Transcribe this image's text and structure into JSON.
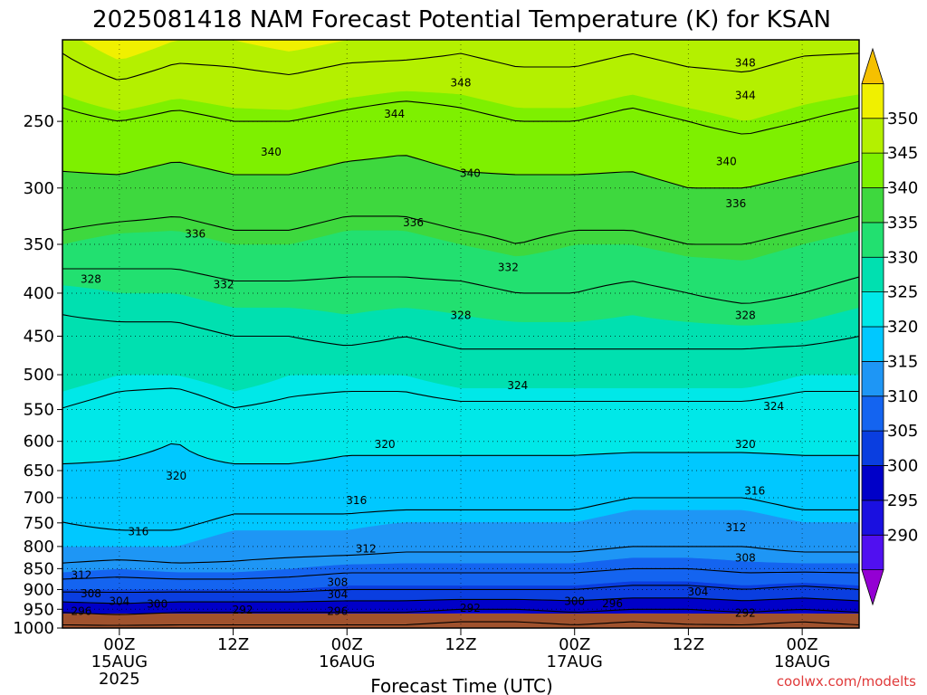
{
  "chart_data": {
    "type": "heatmap",
    "title": "2025081418 NAM Forecast Potential Temperature (K) for KSAN",
    "xlabel": "Forecast Time (UTC)",
    "ylabel": "",
    "y_scale": "log",
    "ylim": [
      1000,
      200
    ],
    "y_ticks": [
      250,
      300,
      350,
      400,
      450,
      500,
      550,
      600,
      650,
      700,
      750,
      800,
      850,
      900,
      950,
      1000
    ],
    "x_start": "2025-08-14 18Z",
    "x_end": "2025-08-18 06Z",
    "x_ticks": [
      {
        "hour": 6,
        "l1": "00Z",
        "l2": "15AUG",
        "l3": "2025"
      },
      {
        "hour": 18,
        "l1": "12Z",
        "l2": "",
        "l3": ""
      },
      {
        "hour": 30,
        "l1": "00Z",
        "l2": "16AUG",
        "l3": ""
      },
      {
        "hour": 42,
        "l1": "12Z",
        "l2": "",
        "l3": ""
      },
      {
        "hour": 54,
        "l1": "00Z",
        "l2": "17AUG",
        "l3": ""
      },
      {
        "hour": 66,
        "l1": "12Z",
        "l2": "",
        "l3": ""
      },
      {
        "hour": 78,
        "l1": "00Z",
        "l2": "18AUG",
        "l3": ""
      }
    ],
    "colorbar": {
      "levels": [
        285,
        290,
        295,
        300,
        305,
        310,
        315,
        320,
        325,
        330,
        335,
        340,
        345,
        350,
        355
      ],
      "labels": [
        290,
        295,
        300,
        305,
        310,
        315,
        320,
        325,
        330,
        335,
        340,
        345,
        350
      ],
      "colors": [
        "#9400d3",
        "#5010f0",
        "#1a10e0",
        "#0000c8",
        "#0a3ee0",
        "#1464f0",
        "#1e96f5",
        "#00c8ff",
        "#00e8e8",
        "#00e0b0",
        "#22e070",
        "#3ed83e",
        "#7ef000",
        "#b4f000",
        "#f0f000",
        "#f5c000"
      ]
    },
    "isotherm_interval": 4,
    "profiles": [
      {
        "hour": 0,
        "levels": [
          [
            1000,
            291
          ],
          [
            950,
            297
          ],
          [
            900,
            305
          ],
          [
            850,
            311
          ],
          [
            800,
            315
          ],
          [
            700,
            317
          ],
          [
            600,
            322
          ],
          [
            500,
            326
          ],
          [
            450,
            327
          ],
          [
            400,
            329
          ],
          [
            350,
            335
          ],
          [
            300,
            339
          ],
          [
            250,
            343
          ],
          [
            200,
            349
          ]
        ]
      },
      {
        "hour": 6,
        "levels": [
          [
            1000,
            291
          ],
          [
            950,
            298
          ],
          [
            900,
            305
          ],
          [
            850,
            310
          ],
          [
            800,
            315
          ],
          [
            700,
            318
          ],
          [
            600,
            321
          ],
          [
            500,
            325
          ],
          [
            450,
            327
          ],
          [
            400,
            330
          ],
          [
            350,
            334
          ],
          [
            300,
            339
          ],
          [
            250,
            344
          ],
          [
            200,
            352
          ]
        ]
      },
      {
        "hour": 12,
        "levels": [
          [
            1000,
            291
          ],
          [
            950,
            297
          ],
          [
            900,
            305
          ],
          [
            850,
            311
          ],
          [
            800,
            315
          ],
          [
            700,
            318
          ],
          [
            600,
            320
          ],
          [
            500,
            325
          ],
          [
            450,
            327
          ],
          [
            400,
            330
          ],
          [
            350,
            334
          ],
          [
            300,
            338
          ],
          [
            250,
            343
          ],
          [
            200,
            350
          ]
        ]
      },
      {
        "hour": 18,
        "levels": [
          [
            1000,
            291
          ],
          [
            950,
            297
          ],
          [
            900,
            305
          ],
          [
            850,
            311
          ],
          [
            800,
            314
          ],
          [
            700,
            317
          ],
          [
            600,
            322
          ],
          [
            500,
            326
          ],
          [
            450,
            328
          ],
          [
            400,
            331
          ],
          [
            350,
            335
          ],
          [
            300,
            339
          ],
          [
            250,
            344
          ],
          [
            200,
            350
          ]
        ]
      },
      {
        "hour": 24,
        "levels": [
          [
            1000,
            291
          ],
          [
            950,
            297
          ],
          [
            900,
            305
          ],
          [
            850,
            310
          ],
          [
            800,
            314
          ],
          [
            700,
            317
          ],
          [
            600,
            322
          ],
          [
            500,
            325
          ],
          [
            450,
            328
          ],
          [
            400,
            331
          ],
          [
            350,
            335
          ],
          [
            300,
            339
          ],
          [
            250,
            344
          ],
          [
            200,
            351
          ]
        ]
      },
      {
        "hour": 30,
        "levels": [
          [
            1000,
            291
          ],
          [
            950,
            297
          ],
          [
            900,
            304
          ],
          [
            850,
            309
          ],
          [
            800,
            314
          ],
          [
            700,
            317
          ],
          [
            600,
            321
          ],
          [
            500,
            325
          ],
          [
            450,
            329
          ],
          [
            400,
            331
          ],
          [
            350,
            334
          ],
          [
            300,
            338
          ],
          [
            250,
            343
          ],
          [
            200,
            350
          ]
        ]
      },
      {
        "hour": 36,
        "levels": [
          [
            1000,
            291
          ],
          [
            950,
            297
          ],
          [
            900,
            304
          ],
          [
            850,
            309
          ],
          [
            800,
            313
          ],
          [
            700,
            317
          ],
          [
            600,
            321
          ],
          [
            500,
            325
          ],
          [
            450,
            328
          ],
          [
            400,
            331
          ],
          [
            350,
            334
          ],
          [
            300,
            338
          ],
          [
            250,
            342
          ],
          [
            200,
            350
          ]
        ]
      },
      {
        "hour": 42,
        "levels": [
          [
            1000,
            290
          ],
          [
            950,
            296
          ],
          [
            900,
            304
          ],
          [
            850,
            309
          ],
          [
            800,
            313
          ],
          [
            700,
            317
          ],
          [
            600,
            321
          ],
          [
            500,
            326
          ],
          [
            450,
            329
          ],
          [
            400,
            331
          ],
          [
            350,
            335
          ],
          [
            300,
            339
          ],
          [
            250,
            343
          ],
          [
            200,
            349
          ]
        ]
      },
      {
        "hour": 48,
        "levels": [
          [
            1000,
            290
          ],
          [
            950,
            296
          ],
          [
            900,
            304
          ],
          [
            850,
            309
          ],
          [
            800,
            313
          ],
          [
            700,
            317
          ],
          [
            600,
            321
          ],
          [
            500,
            326
          ],
          [
            450,
            329
          ],
          [
            400,
            332
          ],
          [
            350,
            336
          ],
          [
            300,
            339
          ],
          [
            250,
            344
          ],
          [
            200,
            350
          ]
        ]
      },
      {
        "hour": 54,
        "levels": [
          [
            1000,
            291
          ],
          [
            950,
            297
          ],
          [
            900,
            304
          ],
          [
            850,
            309
          ],
          [
            800,
            313
          ],
          [
            700,
            317
          ],
          [
            600,
            321
          ],
          [
            500,
            326
          ],
          [
            450,
            329
          ],
          [
            400,
            332
          ],
          [
            350,
            335
          ],
          [
            300,
            339
          ],
          [
            250,
            344
          ],
          [
            200,
            350
          ]
        ]
      },
      {
        "hour": 60,
        "levels": [
          [
            1000,
            290
          ],
          [
            950,
            296
          ],
          [
            900,
            303
          ],
          [
            850,
            308
          ],
          [
            800,
            312
          ],
          [
            700,
            316
          ],
          [
            600,
            321
          ],
          [
            500,
            326
          ],
          [
            450,
            329
          ],
          [
            400,
            331
          ],
          [
            350,
            335
          ],
          [
            300,
            339
          ],
          [
            250,
            343
          ],
          [
            200,
            349
          ]
        ]
      },
      {
        "hour": 66,
        "levels": [
          [
            1000,
            291
          ],
          [
            950,
            296
          ],
          [
            900,
            303
          ],
          [
            850,
            308
          ],
          [
            800,
            312
          ],
          [
            700,
            316
          ],
          [
            600,
            321
          ],
          [
            500,
            326
          ],
          [
            450,
            329
          ],
          [
            400,
            332
          ],
          [
            350,
            336
          ],
          [
            300,
            340
          ],
          [
            250,
            344
          ],
          [
            200,
            350
          ]
        ]
      },
      {
        "hour": 72,
        "levels": [
          [
            1000,
            291
          ],
          [
            950,
            297
          ],
          [
            900,
            304
          ],
          [
            850,
            309
          ],
          [
            800,
            312
          ],
          [
            700,
            316
          ],
          [
            600,
            321
          ],
          [
            500,
            326
          ],
          [
            450,
            329
          ],
          [
            400,
            333
          ],
          [
            350,
            336
          ],
          [
            300,
            340
          ],
          [
            250,
            345
          ],
          [
            200,
            350
          ]
        ]
      },
      {
        "hour": 78,
        "levels": [
          [
            1000,
            290
          ],
          [
            950,
            296
          ],
          [
            900,
            303
          ],
          [
            850,
            309
          ],
          [
            800,
            313
          ],
          [
            700,
            317
          ],
          [
            600,
            321
          ],
          [
            500,
            325
          ],
          [
            450,
            329
          ],
          [
            400,
            332
          ],
          [
            350,
            335
          ],
          [
            300,
            339
          ],
          [
            250,
            344
          ],
          [
            200,
            349
          ]
        ]
      },
      {
        "hour": 84,
        "levels": [
          [
            1000,
            291
          ],
          [
            950,
            297
          ],
          [
            900,
            304
          ],
          [
            850,
            309
          ],
          [
            800,
            313
          ],
          [
            700,
            317
          ],
          [
            600,
            321
          ],
          [
            500,
            325
          ],
          [
            450,
            328
          ],
          [
            400,
            331
          ],
          [
            350,
            334
          ],
          [
            300,
            338
          ],
          [
            250,
            343
          ],
          [
            200,
            349
          ]
        ]
      }
    ],
    "contour_labels": [
      {
        "value": 348,
        "hour": 42,
        "p": 225
      },
      {
        "value": 348,
        "hour": 72,
        "p": 213
      },
      {
        "value": 344,
        "hour": 35,
        "p": 245
      },
      {
        "value": 344,
        "hour": 72,
        "p": 233
      },
      {
        "value": 340,
        "hour": 22,
        "p": 272
      },
      {
        "value": 340,
        "hour": 43,
        "p": 288
      },
      {
        "value": 340,
        "hour": 70,
        "p": 279
      },
      {
        "value": 336,
        "hour": 14,
        "p": 340
      },
      {
        "value": 336,
        "hour": 37,
        "p": 330
      },
      {
        "value": 336,
        "hour": 71,
        "p": 313
      },
      {
        "value": 332,
        "hour": 17,
        "p": 391
      },
      {
        "value": 332,
        "hour": 47,
        "p": 373
      },
      {
        "value": 328,
        "hour": 3,
        "p": 385
      },
      {
        "value": 328,
        "hour": 42,
        "p": 425
      },
      {
        "value": 328,
        "hour": 72,
        "p": 425
      },
      {
        "value": 324,
        "hour": 48,
        "p": 515
      },
      {
        "value": 324,
        "hour": 75,
        "p": 545
      },
      {
        "value": 320,
        "hour": 12,
        "p": 660
      },
      {
        "value": 320,
        "hour": 34,
        "p": 605
      },
      {
        "value": 320,
        "hour": 72,
        "p": 605
      },
      {
        "value": 316,
        "hour": 8,
        "p": 768
      },
      {
        "value": 316,
        "hour": 31,
        "p": 705
      },
      {
        "value": 316,
        "hour": 73,
        "p": 687
      },
      {
        "value": 312,
        "hour": 32,
        "p": 805
      },
      {
        "value": 312,
        "hour": 71,
        "p": 760
      },
      {
        "value": 312,
        "hour": 2,
        "p": 865
      },
      {
        "value": 308,
        "hour": 29,
        "p": 883
      },
      {
        "value": 308,
        "hour": 72,
        "p": 825
      },
      {
        "value": 308,
        "hour": 3,
        "p": 910
      },
      {
        "value": 304,
        "hour": 6,
        "p": 930
      },
      {
        "value": 304,
        "hour": 29,
        "p": 913
      },
      {
        "value": 304,
        "hour": 67,
        "p": 906
      },
      {
        "value": 300,
        "hour": 10,
        "p": 937
      },
      {
        "value": 300,
        "hour": 54,
        "p": 929
      },
      {
        "value": 296,
        "hour": 2,
        "p": 955
      },
      {
        "value": 296,
        "hour": 29,
        "p": 955
      },
      {
        "value": 296,
        "hour": 58,
        "p": 935
      },
      {
        "value": 292,
        "hour": 19,
        "p": 952
      },
      {
        "value": 292,
        "hour": 43,
        "p": 947
      },
      {
        "value": 292,
        "hour": 72,
        "p": 960
      }
    ]
  },
  "credit": "coolwx.com/modelts"
}
